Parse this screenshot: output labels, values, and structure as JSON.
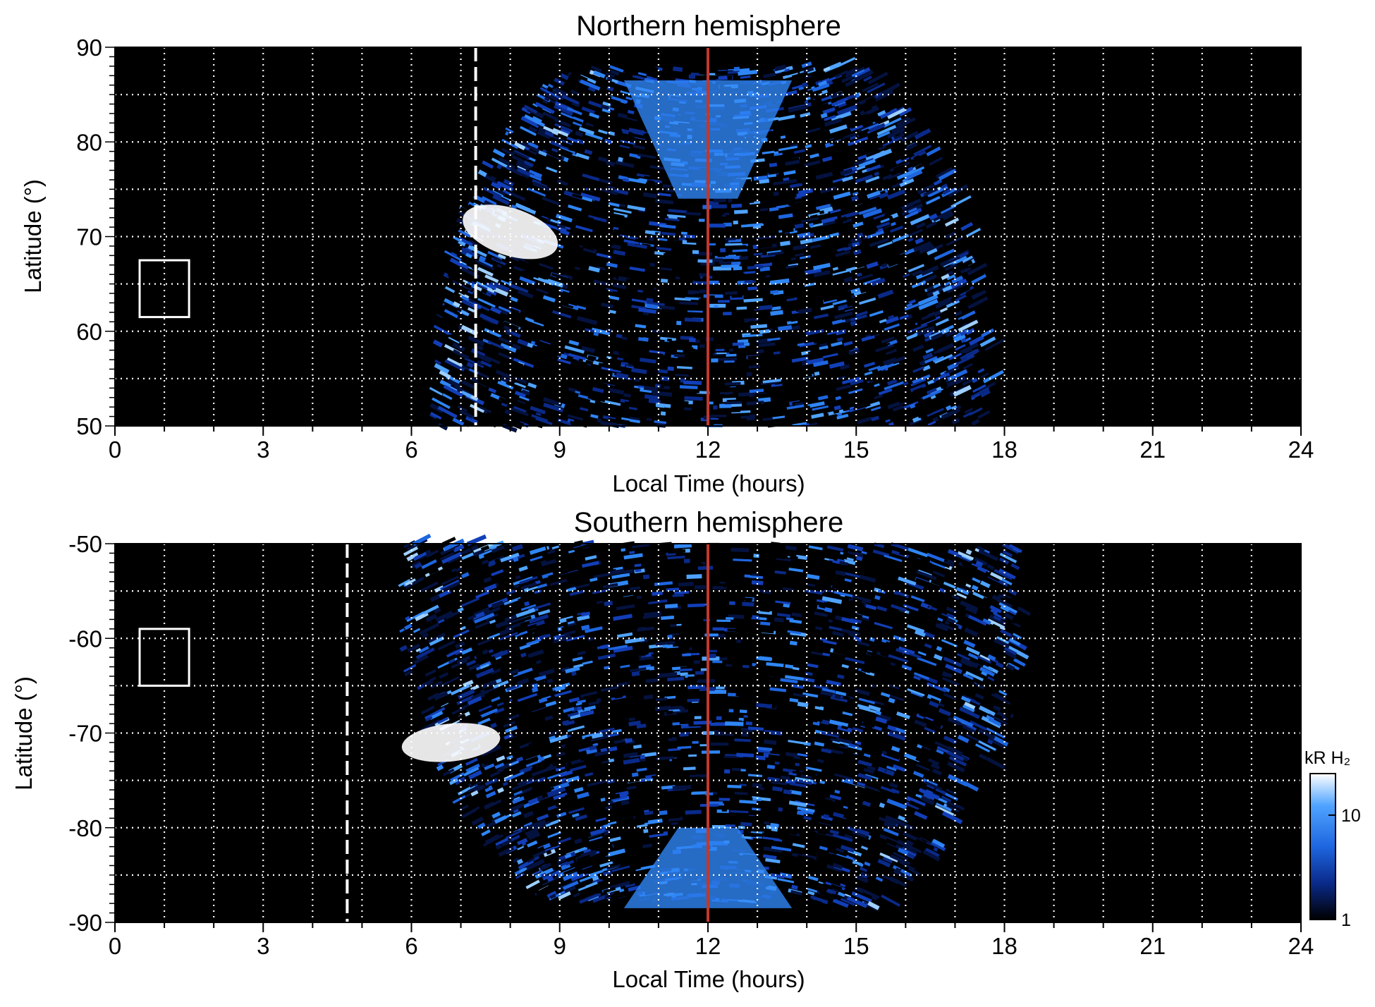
{
  "chart_data": [
    {
      "type": "heatmap",
      "title": "Northern hemisphere",
      "xlabel": "Local Time (hours)",
      "ylabel": "Latitude (°)",
      "xlim": [
        0,
        24
      ],
      "ylim": [
        50,
        90
      ],
      "xticks": [
        "0",
        "3",
        "6",
        "9",
        "12",
        "15",
        "18",
        "21",
        "24"
      ],
      "yticks": [
        "50",
        "60",
        "70",
        "80",
        "90"
      ],
      "grid": true,
      "emission_extent_hours": [
        6.4,
        17.7
      ],
      "dashed_line_hours": 7.3,
      "noon_line_hours": 12,
      "noon_line_color": "#c0392b",
      "box_hours": [
        0.5,
        1.5
      ],
      "box_latitude": [
        61.5,
        67.5
      ],
      "bright_arc_hours": [
        7,
        9
      ],
      "bright_arc_latitude": [
        68,
        73
      ],
      "background_color": "#000000",
      "colors": [
        "#000000",
        "#0a2a8a",
        "#1e66e0",
        "#4fa3ff",
        "#ffffff"
      ]
    },
    {
      "type": "heatmap",
      "title": "Southern hemisphere",
      "xlabel": "Local Time (hours)",
      "ylabel": "Latitude (°)",
      "xlim": [
        0,
        24
      ],
      "ylim": [
        -90,
        -50
      ],
      "xticks": [
        "0",
        "3",
        "6",
        "9",
        "12",
        "15",
        "18",
        "21",
        "24"
      ],
      "yticks": [
        "-50",
        "-60",
        "-70",
        "-80",
        "-90"
      ],
      "grid": true,
      "emission_extent_hours": [
        5.8,
        18.4
      ],
      "dashed_line_hours": 4.7,
      "noon_line_hours": 12,
      "noon_line_color": "#c0392b",
      "box_hours": [
        0.5,
        1.5
      ],
      "box_latitude": [
        -65,
        -59
      ],
      "bright_arc_hours": [
        5.8,
        7.8
      ],
      "bright_arc_latitude": [
        -73,
        -69
      ],
      "background_color": "#000000",
      "colors": [
        "#000000",
        "#0a2a8a",
        "#1e66e0",
        "#4fa3ff",
        "#ffffff"
      ]
    }
  ],
  "colorbar": {
    "label": "kR H₂",
    "ticks": [
      "10",
      "1"
    ],
    "tick_values": [
      10,
      1
    ],
    "range": [
      1,
      25
    ],
    "scale": "log",
    "colors": [
      "#000000",
      "#0a2a8a",
      "#1e66e0",
      "#4fa3ff",
      "#ffffff"
    ]
  }
}
